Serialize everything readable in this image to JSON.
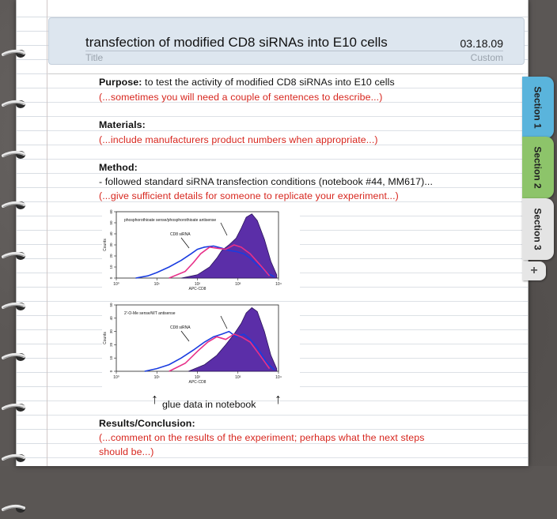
{
  "header": {
    "title": "transfection of modified CD8 siRNAs into E10 cells",
    "date": "03.18.09",
    "title_label": "Title",
    "custom_label": "Custom"
  },
  "body": {
    "purpose_label": "Purpose:",
    "purpose_text": " to test the activity of modified CD8 siRNAs into E10 cells",
    "purpose_hint": "(...sometimes you will need a couple of sentences to describe...)",
    "materials_label": "Materials:",
    "materials_hint": "(...include manufacturers product numbers when appropriate...)",
    "method_label": "Method:",
    "method_text": "- followed standard siRNA transfection conditions (notebook #44, MM617)...",
    "method_hint": " (...give sufficient details for someone to replicate your experiment...)",
    "glue_note": "glue data in notebook",
    "results_label": "Results/Conclusion:",
    "results_hint_1": "(...comment on the results of the experiment; perhaps what the next steps",
    "results_hint_2": "should be...)"
  },
  "tabs": [
    {
      "label": "Section 1",
      "color": "#5ab4dc"
    },
    {
      "label": "Section 2",
      "color": "#8dc46a"
    },
    {
      "label": "Section 3",
      "color": "#e4e4e4"
    }
  ],
  "add_tab_label": "+",
  "chart_data": [
    {
      "type": "area",
      "annotations": [
        "phosphorothioate sense/phosphorothioate antisense",
        "CD8 siRNA"
      ],
      "xlabel": "APC-CD8",
      "ylabel": "Counts",
      "x_ticks": [
        "10⁰",
        "10¹",
        "10²",
        "10³",
        "10⁴"
      ],
      "y_ticks": [
        "0",
        "10",
        "20",
        "30",
        "40",
        "50",
        "60"
      ],
      "xscale": "log",
      "xlim": [
        1,
        10000
      ],
      "ylim": [
        0,
        60
      ],
      "series": [
        {
          "name": "",
          "color": "#5b2ea8",
          "x": [
            40,
            100,
            200,
            300,
            400,
            600,
            900,
            1200,
            1600,
            2200,
            3000,
            4500,
            6500,
            9000
          ],
          "values": [
            0,
            3,
            10,
            18,
            25,
            30,
            36,
            45,
            55,
            58,
            52,
            35,
            15,
            3
          ]
        },
        {
          "name": "",
          "color": "#1a3de0",
          "x": [
            3,
            6,
            10,
            20,
            40,
            70,
            100,
            150,
            250,
            400,
            600,
            900,
            1400,
            2000,
            3000,
            5000,
            8000
          ],
          "values": [
            0,
            2,
            5,
            10,
            16,
            22,
            26,
            28,
            29,
            27,
            25,
            24,
            22,
            18,
            12,
            5,
            1
          ]
        },
        {
          "name": "",
          "color": "#e73089",
          "x": [
            20,
            50,
            80,
            120,
            200,
            300,
            500,
            800,
            1200,
            2000,
            3500,
            6000
          ],
          "values": [
            0,
            6,
            14,
            22,
            28,
            27,
            26,
            30,
            28,
            22,
            12,
            2
          ]
        }
      ]
    },
    {
      "type": "area",
      "annotations": [
        "2'-O-Me sense/WT antisense",
        "CD8 siRNA"
      ],
      "xlabel": "APC-CD8",
      "ylabel": "Counts",
      "x_ticks": [
        "10⁰",
        "10¹",
        "10²",
        "10³",
        "10⁴"
      ],
      "y_ticks": [
        "0",
        "10",
        "20",
        "30",
        "40",
        "50"
      ],
      "xscale": "log",
      "xlim": [
        1,
        10000
      ],
      "ylim": [
        0,
        50
      ],
      "series": [
        {
          "name": "",
          "color": "#5b2ea8",
          "x": [
            60,
            150,
            300,
            500,
            800,
            1200,
            1600,
            2200,
            3000,
            4500,
            6500,
            9000
          ],
          "values": [
            0,
            5,
            12,
            20,
            28,
            36,
            44,
            48,
            45,
            30,
            12,
            2
          ]
        },
        {
          "name": "",
          "color": "#1a3de0",
          "x": [
            5,
            10,
            20,
            40,
            80,
            150,
            250,
            400,
            600,
            900,
            1400,
            2000,
            3000,
            5000,
            8000
          ],
          "values": [
            0,
            2,
            5,
            10,
            16,
            22,
            26,
            28,
            30,
            26,
            28,
            24,
            18,
            7,
            1
          ]
        },
        {
          "name": "",
          "color": "#e73089",
          "x": [
            20,
            50,
            100,
            180,
            300,
            500,
            800,
            1200,
            2000,
            3500,
            6000
          ],
          "values": [
            0,
            6,
            15,
            22,
            26,
            24,
            28,
            26,
            22,
            12,
            2
          ]
        }
      ]
    }
  ]
}
